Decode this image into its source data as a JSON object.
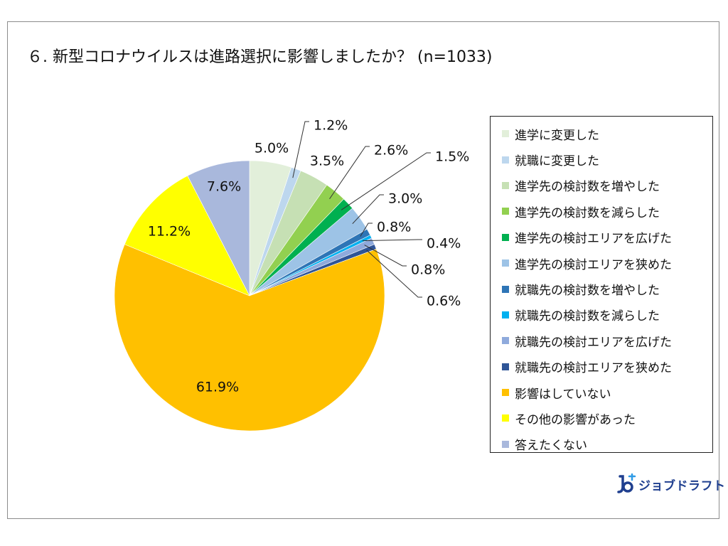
{
  "title": "６. 新型コロナウイルスは進路選択に影響しましたか？ (n=1033)",
  "logo_text": "ジョブドラフト",
  "chart_data": {
    "type": "pie",
    "title": "６. 新型コロナウイルスは進路選択に影響しましたか？ (n=1033)",
    "legend_position": "right",
    "start": "12 o'clock, clockwise",
    "slices": [
      {
        "name": "進学に変更した",
        "value": 5.0,
        "label": "5.0%",
        "color": "#e2efda"
      },
      {
        "name": "就職に変更した",
        "value": 1.2,
        "label": "1.2%",
        "color": "#bdd7ee"
      },
      {
        "name": "進学先の検討数を増やした",
        "value": 3.5,
        "label": "3.5%",
        "color": "#c6e0b4"
      },
      {
        "name": "進学先の検討数を減らした",
        "value": 2.6,
        "label": "2.6%",
        "color": "#92d050"
      },
      {
        "name": "進学先の検討エリアを広げた",
        "value": 1.5,
        "label": "1.5%",
        "color": "#00b050"
      },
      {
        "name": "進学先の検討エリアを狭めた",
        "value": 3.0,
        "label": "3.0%",
        "color": "#9dc3e6"
      },
      {
        "name": "就職先の検討数を増やした",
        "value": 0.8,
        "label": "0.8%",
        "color": "#2e75b6"
      },
      {
        "name": "就職先の検討数を減らした",
        "value": 0.4,
        "label": "0.4%",
        "color": "#00b0f0"
      },
      {
        "name": "就職先の検討エリアを広げた",
        "value": 0.8,
        "label": "0.8%",
        "color": "#8faadc"
      },
      {
        "name": "就職先の検討エリアを狭めた",
        "value": 0.6,
        "label": "0.6%",
        "color": "#2f5597"
      },
      {
        "name": "影響はしていない",
        "value": 61.9,
        "label": "61.9%",
        "color": "#ffc000"
      },
      {
        "name": "その他の影響があった",
        "value": 11.2,
        "label": "11.2%",
        "color": "#ffff00"
      },
      {
        "name": "答えたくない",
        "value": 7.6,
        "label": "7.6%",
        "color": "#a9b8dc"
      }
    ]
  }
}
